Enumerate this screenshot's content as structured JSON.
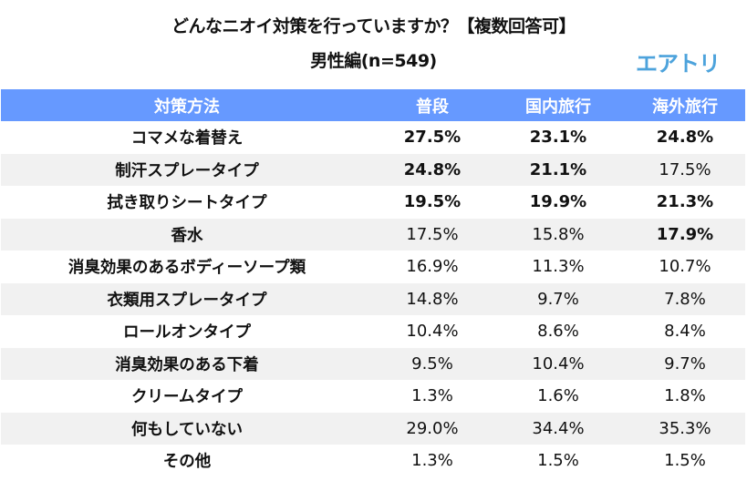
{
  "header": {
    "title": "どんなニオイ対策を行っていますか？【複数回答可】",
    "subtitle": "男性編(n=549)",
    "logo": "エアトリ"
  },
  "colors": {
    "header_bg": "#6699ff",
    "header_text": "#ffffff",
    "alt_row": "#f1f1f1",
    "logo": "#4da3dc"
  },
  "table": {
    "columns": [
      "対策方法",
      "普段",
      "国内旅行",
      "海外旅行"
    ],
    "rows": [
      {
        "label": "コマメな着替え",
        "values": [
          "27.5%",
          "23.1%",
          "24.8%"
        ],
        "bold": [
          true,
          true,
          true
        ]
      },
      {
        "label": "制汗スプレータイプ",
        "values": [
          "24.8%",
          "21.1%",
          "17.5%"
        ],
        "bold": [
          true,
          true,
          false
        ]
      },
      {
        "label": "拭き取りシートタイプ",
        "values": [
          "19.5%",
          "19.9%",
          "21.3%"
        ],
        "bold": [
          true,
          true,
          true
        ]
      },
      {
        "label": "香水",
        "values": [
          "17.5%",
          "15.8%",
          "17.9%"
        ],
        "bold": [
          false,
          false,
          true
        ]
      },
      {
        "label": "消臭効果のあるボディーソープ類",
        "values": [
          "16.9%",
          "11.3%",
          "10.7%"
        ],
        "bold": [
          false,
          false,
          false
        ]
      },
      {
        "label": "衣類用スプレータイプ",
        "values": [
          "14.8%",
          "9.7%",
          "7.8%"
        ],
        "bold": [
          false,
          false,
          false
        ]
      },
      {
        "label": "ロールオンタイプ",
        "values": [
          "10.4%",
          "8.6%",
          "8.4%"
        ],
        "bold": [
          false,
          false,
          false
        ]
      },
      {
        "label": "消臭効果のある下着",
        "values": [
          "9.5%",
          "10.4%",
          "9.7%"
        ],
        "bold": [
          false,
          false,
          false
        ]
      },
      {
        "label": "クリームタイプ",
        "values": [
          "1.3%",
          "1.6%",
          "1.8%"
        ],
        "bold": [
          false,
          false,
          false
        ]
      },
      {
        "label": "何もしていない",
        "values": [
          "29.0%",
          "34.4%",
          "35.3%"
        ],
        "bold": [
          false,
          false,
          false
        ]
      },
      {
        "label": "その他",
        "values": [
          "1.3%",
          "1.5%",
          "1.5%"
        ],
        "bold": [
          false,
          false,
          false
        ]
      }
    ]
  },
  "chart_data": {
    "type": "table",
    "title": "どんなニオイ対策を行っていますか？【複数回答可】",
    "subtitle": "男性編(n=549)",
    "categories": [
      "コマメな着替え",
      "制汗スプレータイプ",
      "拭き取りシートタイプ",
      "香水",
      "消臭効果のあるボディーソープ類",
      "衣類用スプレータイプ",
      "ロールオンタイプ",
      "消臭効果のある下着",
      "クリームタイプ",
      "何もしていない",
      "その他"
    ],
    "series": [
      {
        "name": "普段",
        "values": [
          27.5,
          24.8,
          19.5,
          17.5,
          16.9,
          14.8,
          10.4,
          9.5,
          1.3,
          29.0,
          1.3
        ]
      },
      {
        "name": "国内旅行",
        "values": [
          23.1,
          21.1,
          19.9,
          15.8,
          11.3,
          9.7,
          8.6,
          10.4,
          1.6,
          34.4,
          1.5
        ]
      },
      {
        "name": "海外旅行",
        "values": [
          24.8,
          17.5,
          21.3,
          17.9,
          10.7,
          7.8,
          8.4,
          9.7,
          1.8,
          35.3,
          1.5
        ]
      }
    ],
    "unit": "%"
  }
}
